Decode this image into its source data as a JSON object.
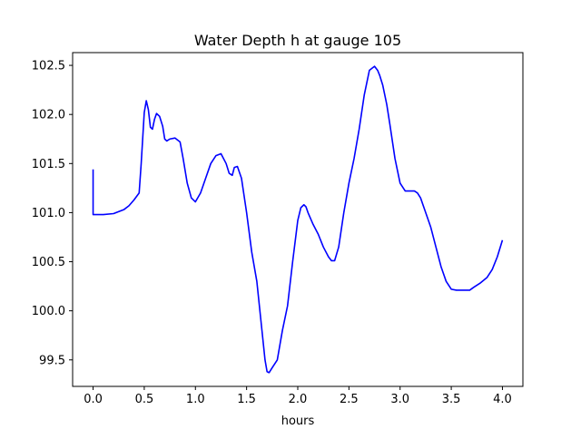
{
  "chart_data": {
    "type": "line",
    "title": "Water Depth h at gauge 105",
    "xlabel": "hours",
    "ylabel": "",
    "xlim": [
      -0.2,
      4.2
    ],
    "ylim": [
      99.23,
      102.63
    ],
    "xticks": [
      0.0,
      0.5,
      1.0,
      1.5,
      2.0,
      2.5,
      3.0,
      3.5,
      4.0
    ],
    "xtick_labels": [
      "0.0",
      "0.5",
      "1.0",
      "1.5",
      "2.0",
      "2.5",
      "3.0",
      "3.5",
      "4.0"
    ],
    "yticks": [
      99.5,
      100.0,
      100.5,
      101.0,
      101.5,
      102.0,
      102.5
    ],
    "ytick_labels": [
      "99.5",
      "100.0",
      "100.5",
      "101.0",
      "101.5",
      "102.0",
      "102.5"
    ],
    "grid": false,
    "series": [
      {
        "color": "#0000ff",
        "x": [
          0.0,
          0.0,
          0.1,
          0.2,
          0.3,
          0.35,
          0.4,
          0.45,
          0.47,
          0.5,
          0.52,
          0.54,
          0.56,
          0.58,
          0.6,
          0.62,
          0.65,
          0.68,
          0.7,
          0.72,
          0.75,
          0.8,
          0.85,
          0.88,
          0.92,
          0.96,
          1.0,
          1.05,
          1.1,
          1.15,
          1.2,
          1.25,
          1.3,
          1.33,
          1.36,
          1.38,
          1.41,
          1.45,
          1.5,
          1.55,
          1.6,
          1.65,
          1.68,
          1.7,
          1.72,
          1.75,
          1.8,
          1.85,
          1.9,
          1.95,
          2.0,
          2.03,
          2.06,
          2.08,
          2.1,
          2.15,
          2.2,
          2.25,
          2.3,
          2.33,
          2.36,
          2.4,
          2.45,
          2.5,
          2.55,
          2.6,
          2.65,
          2.7,
          2.75,
          2.78,
          2.8,
          2.83,
          2.87,
          2.9,
          2.95,
          3.0,
          3.05,
          3.1,
          3.14,
          3.17,
          3.2,
          3.25,
          3.3,
          3.35,
          3.4,
          3.45,
          3.5,
          3.55,
          3.6,
          3.68,
          3.72,
          3.78,
          3.85,
          3.9,
          3.95,
          4.0
        ],
        "y": [
          101.44,
          100.98,
          100.98,
          100.99,
          101.03,
          101.07,
          101.13,
          101.2,
          101.5,
          102.02,
          102.14,
          102.05,
          101.87,
          101.85,
          101.95,
          102.01,
          101.98,
          101.88,
          101.75,
          101.73,
          101.75,
          101.76,
          101.72,
          101.55,
          101.3,
          101.15,
          101.11,
          101.2,
          101.35,
          101.5,
          101.58,
          101.6,
          101.5,
          101.4,
          101.38,
          101.46,
          101.47,
          101.35,
          101.0,
          100.6,
          100.3,
          99.8,
          99.5,
          99.38,
          99.37,
          99.42,
          99.5,
          99.8,
          100.05,
          100.5,
          100.92,
          101.05,
          101.08,
          101.06,
          101.0,
          100.88,
          100.78,
          100.65,
          100.55,
          100.51,
          100.51,
          100.65,
          101.0,
          101.3,
          101.55,
          101.85,
          102.2,
          102.45,
          102.49,
          102.45,
          102.4,
          102.3,
          102.1,
          101.9,
          101.55,
          101.3,
          101.22,
          101.22,
          101.22,
          101.2,
          101.15,
          101.0,
          100.85,
          100.65,
          100.45,
          100.3,
          100.22,
          100.21,
          100.21,
          100.21,
          100.24,
          100.28,
          100.34,
          100.42,
          100.55,
          100.72
        ]
      }
    ]
  }
}
